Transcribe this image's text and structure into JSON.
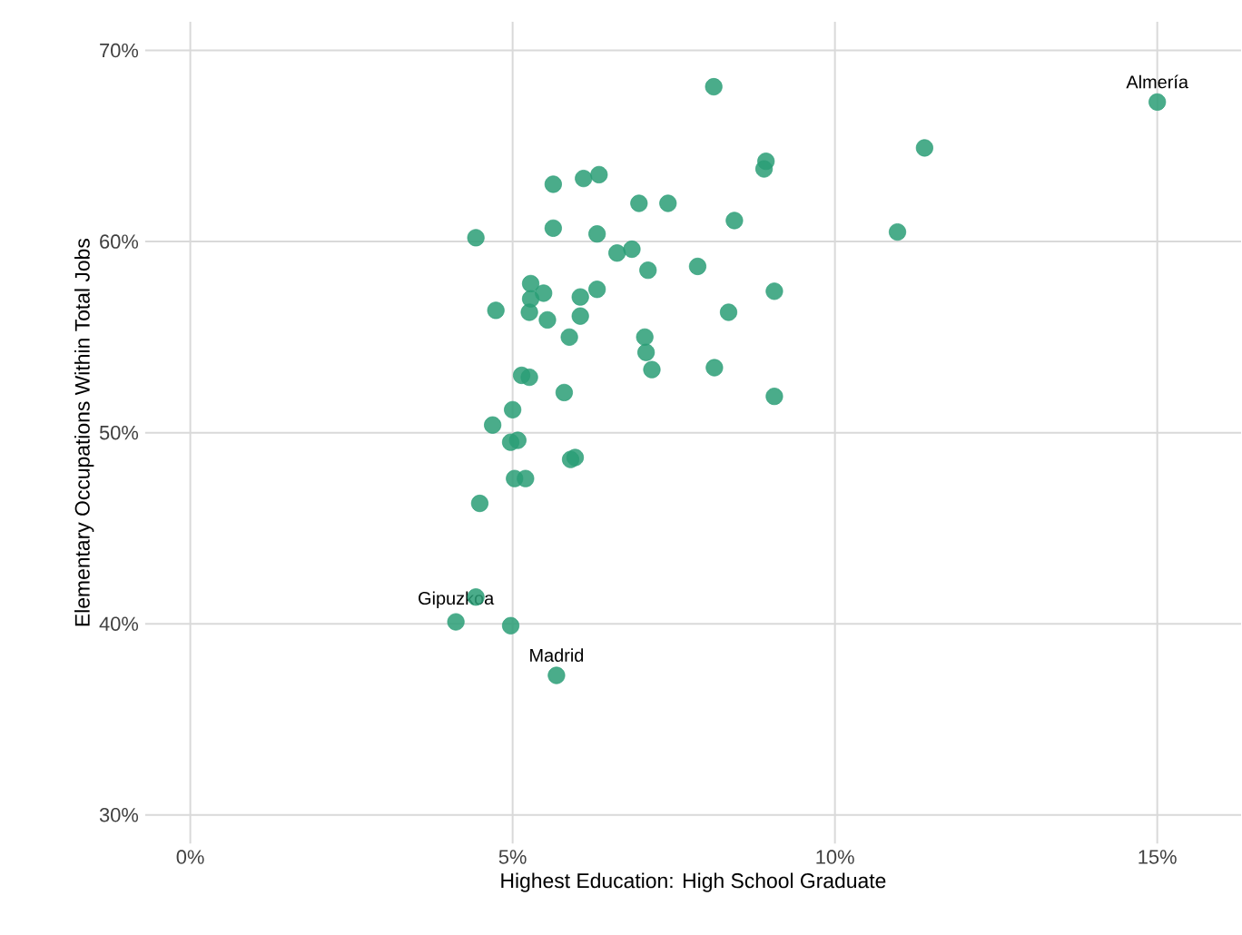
{
  "chart_data": {
    "type": "scatter",
    "xlabel": "Highest Education: High School Graduate",
    "ylabel": "Elementary Occupations Within Total Jobs",
    "xlim": [
      -0.7,
      16.3
    ],
    "ylim": [
      28.5,
      71.5
    ],
    "xticks": [
      {
        "value": 0,
        "label": "0%"
      },
      {
        "value": 5,
        "label": "5%"
      },
      {
        "value": 10,
        "label": "10%"
      },
      {
        "value": 15,
        "label": "15%"
      }
    ],
    "yticks": [
      {
        "value": 30,
        "label": "30%"
      },
      {
        "value": 40,
        "label": "40%"
      },
      {
        "value": 50,
        "label": "50%"
      },
      {
        "value": 60,
        "label": "60%"
      },
      {
        "value": 70,
        "label": "70%"
      }
    ],
    "grid": true,
    "series": [
      {
        "color": "#2a9d76",
        "x": [
          8.12,
          8.93,
          8.9,
          11.39,
          15.0,
          10.97,
          5.63,
          6.1,
          6.34,
          6.96,
          7.41,
          8.44,
          4.43,
          5.63,
          6.31,
          6.62,
          6.85,
          7.1,
          7.87,
          9.06,
          5.28,
          5.48,
          5.28,
          5.26,
          5.54,
          6.31,
          6.05,
          6.05,
          4.74,
          5.88,
          8.35,
          7.05,
          7.07,
          7.16,
          8.13,
          9.06,
          5.14,
          5.26,
          5.8,
          5.0,
          4.69,
          4.97,
          5.08,
          5.9,
          5.97,
          5.03,
          5.2,
          4.49,
          4.43,
          4.12,
          4.97,
          5.68
        ],
        "values": [
          68.1,
          64.2,
          63.8,
          64.9,
          67.3,
          60.5,
          63.0,
          63.3,
          63.5,
          62.0,
          62.0,
          61.1,
          60.2,
          60.7,
          60.4,
          59.4,
          59.6,
          58.5,
          58.7,
          57.4,
          57.8,
          57.3,
          57.0,
          56.3,
          55.9,
          57.5,
          57.1,
          56.1,
          56.4,
          55.0,
          56.3,
          55.0,
          54.2,
          53.3,
          53.4,
          51.9,
          53.0,
          52.9,
          52.1,
          51.2,
          50.4,
          49.5,
          49.6,
          48.6,
          48.7,
          47.6,
          47.6,
          46.3,
          41.4,
          40.1,
          39.9,
          37.3
        ]
      }
    ],
    "annotations": [
      {
        "text": "Almería",
        "x": 15.0,
        "y": 67.3
      },
      {
        "text": "Gipuzkoa",
        "x": 4.12,
        "y": 40.1
      },
      {
        "text": "Madrid",
        "x": 5.68,
        "y": 37.3
      }
    ]
  }
}
